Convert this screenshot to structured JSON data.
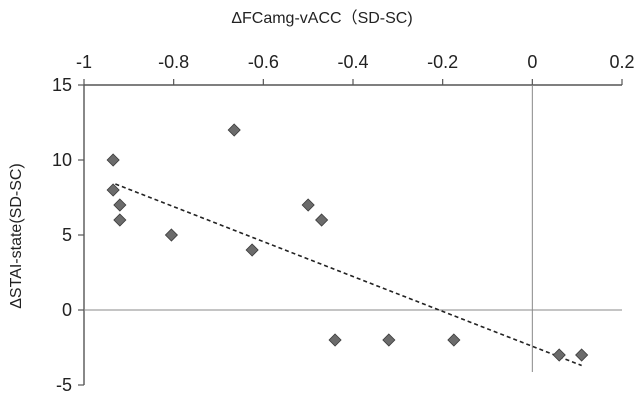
{
  "chart_data": {
    "type": "scatter",
    "title": "",
    "xlabel": "ΔFCamg-vACC（SD-SC)",
    "ylabel": "ΔSTAI-state(SD-SC)",
    "xlim": [
      -1,
      0.2
    ],
    "ylim": [
      -5,
      15
    ],
    "x_ticks": [
      -1,
      -0.8,
      -0.6,
      -0.4,
      -0.2,
      0,
      0.2
    ],
    "x_tick_labels": [
      "-1",
      "-0.8",
      "-0.6",
      "-0.4",
      "-0.2",
      "0",
      "0.2"
    ],
    "y_ticks": [
      -5,
      0,
      5,
      10,
      15
    ],
    "y_tick_labels": [
      "-5",
      "0",
      "5",
      "10",
      "15"
    ],
    "x_axis_position": "top",
    "grid": false,
    "legend": "none",
    "marker": "diamond",
    "marker_color": "#6b6b6b",
    "trendline": {
      "style": "dashed",
      "color": "#222222",
      "points": [
        [
          -0.93,
          8.4
        ],
        [
          0.11,
          -3.7
        ]
      ]
    },
    "points": [
      {
        "x": -0.935,
        "y": 10
      },
      {
        "x": -0.935,
        "y": 8
      },
      {
        "x": -0.92,
        "y": 7
      },
      {
        "x": -0.92,
        "y": 6
      },
      {
        "x": -0.805,
        "y": 5
      },
      {
        "x": -0.665,
        "y": 12
      },
      {
        "x": -0.625,
        "y": 4
      },
      {
        "x": -0.5,
        "y": 7
      },
      {
        "x": -0.47,
        "y": 6
      },
      {
        "x": -0.44,
        "y": -2
      },
      {
        "x": -0.32,
        "y": -2
      },
      {
        "x": -0.175,
        "y": -2
      },
      {
        "x": 0.06,
        "y": -3
      },
      {
        "x": 0.11,
        "y": -3
      }
    ]
  }
}
